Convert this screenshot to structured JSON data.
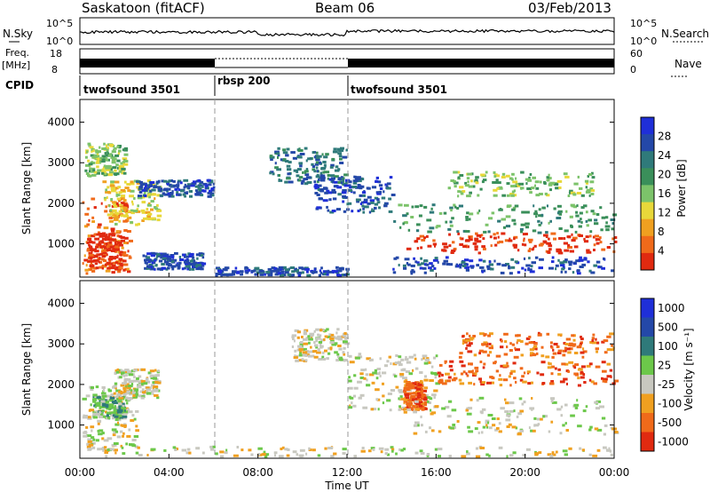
{
  "header": {
    "station": "Saskatoon (fitACF)",
    "beam": "Beam 06",
    "date": "03/Feb/2013"
  },
  "noise_panel": {
    "left_label": "N.Sky",
    "left_ticks": [
      "10^5",
      "10^0"
    ],
    "right_ticks": [
      "10^5",
      "10^0"
    ],
    "right_label": "N.Search"
  },
  "freq_panel": {
    "left_label_top": "Freq.",
    "left_label_unit": "[MHz]",
    "left_ticks": [
      "18",
      "8"
    ],
    "right_ticks": [
      "60",
      "0"
    ],
    "right_label": "Nave"
  },
  "cpid_panel": {
    "label": "CPID",
    "segments": [
      {
        "name": "twofsound 3501",
        "start_hour": 0
      },
      {
        "name": "rbsp 200",
        "start_hour": 6
      },
      {
        "name": "twofsound 3501",
        "start_hour": 12
      }
    ]
  },
  "colors": {
    "power_scale": [
      "#1f2fd8",
      "#2448a8",
      "#2f7a7a",
      "#3a8f5a",
      "#7cc36a",
      "#e8d83a",
      "#f0a020",
      "#f06a1a",
      "#e02a10"
    ],
    "velocity_scale": [
      "#1f2fd8",
      "#2448a8",
      "#2f7a7a",
      "#6cc84a",
      "#c8c8c0",
      "#f0a020",
      "#f06a1a",
      "#e02a10"
    ],
    "ground_scatter": "#c8c8c0"
  },
  "chart_data": [
    {
      "type": "heatmap",
      "name": "power",
      "ylabel": "Slant Range [km]",
      "xlabel": "Time UT",
      "xlim_hours": [
        0,
        24
      ],
      "ylim_km": [
        180,
        4560
      ],
      "x_ticks": [
        "00:00",
        "04:00",
        "08:00",
        "12:00",
        "16:00",
        "20:00",
        "00:00"
      ],
      "y_ticks": [
        1000,
        2000,
        3000,
        4000
      ],
      "colorbar": {
        "label": "Power [dB]",
        "ticks": [
          "28",
          "24",
          "20",
          "16",
          "12",
          "8",
          "4"
        ]
      },
      "scatter_regions": [
        {
          "t0": 0.1,
          "t1": 2.2,
          "r0": 300,
          "r1": 2200,
          "cat": 7
        },
        {
          "t0": 0.3,
          "t1": 1.8,
          "r0": 400,
          "r1": 1300,
          "cat": 8
        },
        {
          "t0": 1.0,
          "t1": 3.5,
          "r0": 1500,
          "r1": 2600,
          "cat": 5
        },
        {
          "t0": 0.2,
          "t1": 2.0,
          "r0": 2700,
          "r1": 3500,
          "cat": 4
        },
        {
          "t0": 2.5,
          "t1": 6.0,
          "r0": 2200,
          "r1": 2600,
          "cat": 1
        },
        {
          "t0": 2.8,
          "t1": 5.5,
          "r0": 400,
          "r1": 800,
          "cat": 1
        },
        {
          "t0": 8.5,
          "t1": 12.0,
          "r0": 2500,
          "r1": 3400,
          "cat": 2
        },
        {
          "t0": 10.5,
          "t1": 14.0,
          "r0": 1800,
          "r1": 2700,
          "cat": 1
        },
        {
          "t0": 6.0,
          "t1": 12.0,
          "r0": 250,
          "r1": 450,
          "cat": 1
        },
        {
          "t0": 14.0,
          "t1": 24.0,
          "r0": 1300,
          "r1": 2000,
          "cat": 3
        },
        {
          "t0": 14.5,
          "t1": 24.0,
          "r0": 800,
          "r1": 1300,
          "cat": 8
        },
        {
          "t0": 14.0,
          "t1": 24.0,
          "r0": 300,
          "r1": 700,
          "cat": 1
        },
        {
          "t0": 16.5,
          "t1": 23.0,
          "r0": 2200,
          "r1": 2800,
          "cat": 4
        }
      ]
    },
    {
      "type": "heatmap",
      "name": "velocity",
      "ylabel": "Slant Range [km]",
      "xlabel": "Time UT",
      "xlim_hours": [
        0,
        24
      ],
      "ylim_km": [
        180,
        4560
      ],
      "x_ticks": [
        "00:00",
        "04:00",
        "08:00",
        "12:00",
        "16:00",
        "20:00",
        "00:00"
      ],
      "y_ticks": [
        1000,
        2000,
        3000,
        4000
      ],
      "colorbar": {
        "label": "Velocity [m s⁻¹]",
        "ticks": [
          "1000",
          "500",
          "100",
          "25",
          "-25",
          "-100",
          "-500",
          "-1000"
        ]
      },
      "scatter_regions": [
        {
          "t0": 0.1,
          "t1": 2.5,
          "r0": 400,
          "r1": 2000,
          "cat": 4
        },
        {
          "t0": 0.5,
          "t1": 2.0,
          "r0": 1200,
          "r1": 1800,
          "cat": 3
        },
        {
          "t0": 1.5,
          "t1": 3.5,
          "r0": 1700,
          "r1": 2400,
          "cat": 4
        },
        {
          "t0": 9.5,
          "t1": 12.0,
          "r0": 2600,
          "r1": 3400,
          "cat": 4
        },
        {
          "t0": 12.0,
          "t1": 16.0,
          "r0": 1400,
          "r1": 2800,
          "cat": 4
        },
        {
          "t0": 14.5,
          "t1": 15.5,
          "r0": 1400,
          "r1": 2100,
          "cat": 6
        },
        {
          "t0": 14.5,
          "t1": 24.0,
          "r0": 800,
          "r1": 1700,
          "cat": 4
        },
        {
          "t0": 16.0,
          "t1": 24.0,
          "r0": 2000,
          "r1": 2600,
          "cat": 6
        },
        {
          "t0": 17.0,
          "t1": 24.0,
          "r0": 2700,
          "r1": 3300,
          "cat": 6
        },
        {
          "t0": 0.0,
          "t1": 24.0,
          "r0": 250,
          "r1": 500,
          "cat": 4
        }
      ]
    }
  ]
}
